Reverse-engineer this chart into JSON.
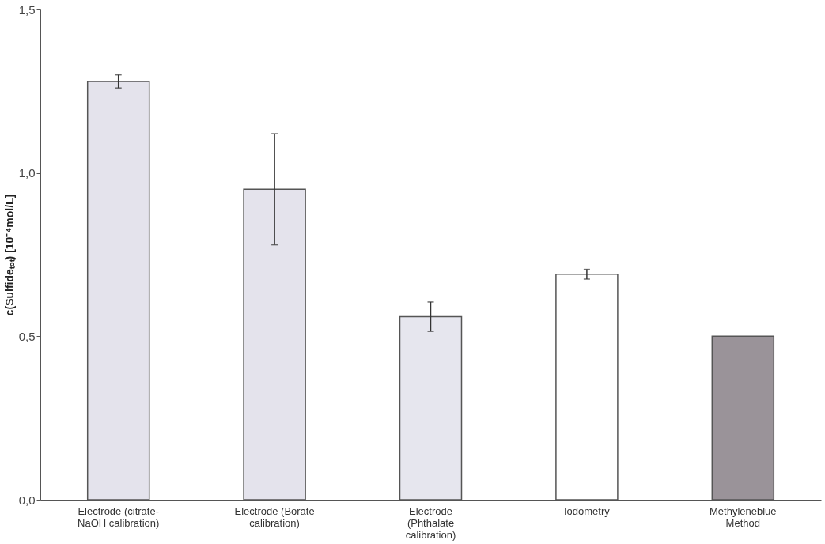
{
  "chart_data": {
    "type": "bar",
    "ylabel": "c(Sulfideₜₒₜ) [10⁻⁴mol/L]",
    "categories": [
      "Electrode (citrate-NaOH calibration)",
      "Electrode (Borate calibration)",
      "Electrode (Phthalate calibration)",
      "Iodometry",
      "Methyleneblue Method"
    ],
    "values": [
      1.28,
      0.95,
      0.56,
      0.69,
      0.5
    ],
    "errors": [
      0.02,
      0.17,
      0.045,
      0.015,
      null
    ],
    "colors": [
      "#e4e3ec",
      "#e4e3ec",
      "#e6e6ee",
      "#ffffff",
      "#9a9399"
    ],
    "ylim": [
      0,
      1.5
    ],
    "yticks": [
      {
        "value": 0,
        "label": "0,0"
      },
      {
        "value": 0.5,
        "label": "0,5"
      },
      {
        "value": 1.0,
        "label": "1,0"
      },
      {
        "value": 1.5,
        "label": "1,5"
      }
    ],
    "grid": false
  }
}
